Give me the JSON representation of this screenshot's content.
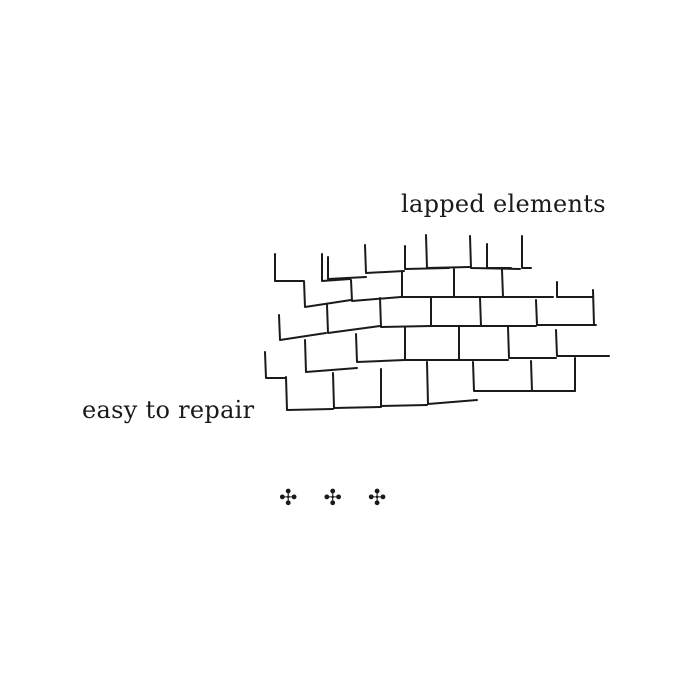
{
  "labels": {
    "top": "lapped elements",
    "bottom": "easy to repair"
  },
  "ornaments": [
    "✣",
    "✣",
    "✣"
  ],
  "colors": {
    "ink": "#1a1a1a",
    "background": "#ffffff"
  }
}
